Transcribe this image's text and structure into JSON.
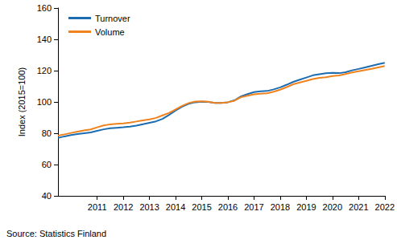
{
  "chart_data": {
    "type": "line",
    "y_label": "Index (2015=100)",
    "source": "Source: Statistics Finland",
    "categories": [
      null,
      null,
      null,
      null,
      null,
      null,
      "2011",
      null,
      null,
      null,
      "2012",
      null,
      null,
      null,
      "2013",
      null,
      null,
      null,
      "2014",
      null,
      null,
      null,
      "2015",
      null,
      null,
      null,
      "2016",
      null,
      null,
      null,
      "2017",
      null,
      null,
      null,
      "2018",
      null,
      null,
      null,
      "2019",
      null,
      null,
      null,
      "2020",
      null,
      null,
      null,
      "2021",
      null,
      null,
      null,
      "2022"
    ],
    "series": [
      {
        "name": "Turnover",
        "color": "#1b6cb0",
        "values": [
          77,
          78,
          78.8,
          79.5,
          80,
          80.5,
          81.5,
          82.5,
          83.2,
          83.5,
          83.8,
          84.2,
          84.9,
          85.8,
          86.7,
          87.6,
          89.2,
          91.7,
          94.5,
          97,
          98.8,
          99.8,
          100.1,
          100,
          99.4,
          99.3,
          99.8,
          101,
          103.5,
          105,
          106.3,
          106.8,
          107,
          108,
          109.3,
          111,
          112.8,
          114.2,
          115.6,
          117,
          117.7,
          118.3,
          118.6,
          118.4,
          119,
          120.2,
          121.1,
          122.1,
          123.1,
          124.1,
          125
        ]
      },
      {
        "name": "Volume",
        "color": "#f0821e",
        "values": [
          78.5,
          79.3,
          80.2,
          81,
          81.8,
          82.4,
          83.8,
          85,
          85.7,
          86,
          86.3,
          86.8,
          87.5,
          88.2,
          88.8,
          89.8,
          91.4,
          93,
          95.2,
          97.5,
          99.3,
          100.3,
          100.4,
          100.1,
          99.4,
          99.3,
          99.8,
          100.8,
          103,
          104,
          104.9,
          105.3,
          105.5,
          106.5,
          107.8,
          109.5,
          111.3,
          112.4,
          113.5,
          114.6,
          115.4,
          115.8,
          116.5,
          116.9,
          117.8,
          118.8,
          119.6,
          120.4,
          121.2,
          122.1,
          123
        ]
      }
    ],
    "ylim": [
      40,
      160
    ],
    "yticks": [
      40,
      60,
      80,
      100,
      120,
      140,
      160
    ],
    "grid": false,
    "legend": "upper left"
  }
}
